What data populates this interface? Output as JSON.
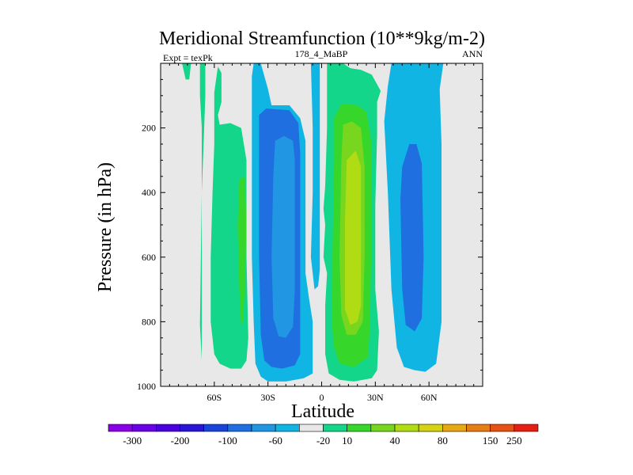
{
  "chart_data": {
    "type": "heatmap",
    "title": "Meridional Streamfunction (10**9kg/m-2)",
    "left_subtitle": "Expt = texPk",
    "center_subtitle": "178_4_MaBP",
    "right_subtitle": "ANN",
    "xlabel": "Latitude",
    "ylabel": "Pressure (in hPa)",
    "xlim": [
      -90,
      90
    ],
    "ylim": [
      1000,
      0
    ],
    "x_ticks": [
      {
        "value": -60,
        "label": "60S"
      },
      {
        "value": -30,
        "label": "30S"
      },
      {
        "value": 0,
        "label": "0"
      },
      {
        "value": 30,
        "label": "30N"
      },
      {
        "value": 60,
        "label": "60N"
      }
    ],
    "y_ticks": [
      {
        "value": 200,
        "label": "200"
      },
      {
        "value": 400,
        "label": "400"
      },
      {
        "value": 600,
        "label": "600"
      },
      {
        "value": 800,
        "label": "800"
      },
      {
        "value": 1000,
        "label": "1000"
      }
    ],
    "background_color": "#e8e8e8",
    "colorbar": {
      "colors": [
        "#8a00e6",
        "#6a00e6",
        "#4b00e0",
        "#2a14d6",
        "#1a44d8",
        "#1f6fe0",
        "#2196e3",
        "#11b5e3",
        "#e8e8e8",
        "#14d68a",
        "#36d62a",
        "#78d61e",
        "#b0dc14",
        "#d6d214",
        "#e6a914",
        "#e67e14",
        "#e65214",
        "#e61f14"
      ],
      "labels": [
        "-300",
        "-200",
        "-100",
        "-60",
        "-20",
        "10",
        "40",
        "80",
        "150",
        "250"
      ],
      "label_boundaries": [
        1,
        3,
        5,
        7,
        9,
        10,
        12,
        14,
        16,
        17
      ]
    },
    "regions": [
      {
        "level": 10,
        "color": "#14d68a",
        "points": [
          [
            -81,
            0
          ],
          [
            -73,
            0
          ],
          [
            -74,
            50
          ],
          [
            -76,
            50
          ],
          [
            -78,
            0
          ]
        ]
      },
      {
        "level": 10,
        "color": "#14d68a",
        "points": [
          [
            -68,
            0
          ],
          [
            -65,
            0
          ],
          [
            -65,
            100
          ],
          [
            -66,
            250
          ],
          [
            -67,
            400
          ],
          [
            -67,
            600
          ],
          [
            -67,
            800
          ],
          [
            -67,
            920
          ],
          [
            -68,
            810
          ],
          [
            -67,
            400
          ],
          [
            -67,
            200
          ],
          [
            -68,
            100
          ]
        ]
      },
      {
        "level": 10,
        "color": "#14d68a",
        "points": [
          [
            -60,
            90
          ],
          [
            -58,
            10
          ],
          [
            -56,
            30
          ],
          [
            -56,
            120
          ],
          [
            -58,
            160
          ],
          [
            -57,
            190
          ],
          [
            -51,
            185
          ],
          [
            -45,
            200
          ],
          [
            -42,
            300
          ],
          [
            -42,
            600
          ],
          [
            -41,
            850
          ],
          [
            -42,
            920
          ],
          [
            -45,
            945
          ],
          [
            -51,
            945
          ],
          [
            -57,
            930
          ],
          [
            -60,
            900
          ],
          [
            -62,
            800
          ],
          [
            -62,
            600
          ],
          [
            -61,
            400
          ],
          [
            -60,
            250
          ]
        ]
      },
      {
        "level": 40,
        "color": "#36d62a",
        "points": [
          [
            -46,
            360
          ],
          [
            -43,
            350
          ],
          [
            -42,
            500
          ],
          [
            -43,
            700
          ],
          [
            -44,
            800
          ],
          [
            -45,
            810
          ],
          [
            -46,
            700
          ],
          [
            -47,
            500
          ]
        ]
      },
      {
        "level": -20,
        "color": "#11b5e3",
        "points": [
          [
            -39,
            400
          ],
          [
            -39,
            150
          ],
          [
            -39,
            40
          ],
          [
            -38,
            0
          ],
          [
            -34,
            0
          ],
          [
            -30,
            80
          ],
          [
            -28,
            130
          ],
          [
            -18,
            130
          ],
          [
            -12,
            170
          ],
          [
            -9,
            240
          ],
          [
            -9,
            450
          ],
          [
            -9,
            650
          ],
          [
            -7,
            730
          ],
          [
            -5,
            800
          ],
          [
            -5,
            960
          ],
          [
            -10,
            975
          ],
          [
            -20,
            985
          ],
          [
            -30,
            985
          ],
          [
            -34,
            970
          ],
          [
            -37,
            930
          ],
          [
            -38,
            800
          ],
          [
            -39,
            600
          ]
        ]
      },
      {
        "level": -20,
        "color": "#11b5e3",
        "points": [
          [
            -6,
            0
          ],
          [
            -1,
            0
          ],
          [
            -1,
            300
          ],
          [
            -1,
            640
          ],
          [
            -2,
            690
          ],
          [
            -4,
            700
          ],
          [
            -6,
            600
          ],
          [
            -5,
            400
          ],
          [
            -5,
            200
          ]
        ]
      },
      {
        "level": -60,
        "color": "#1f6fe0",
        "points": [
          [
            -35,
            260
          ],
          [
            -35,
            160
          ],
          [
            -31,
            140
          ],
          [
            -18,
            145
          ],
          [
            -13,
            185
          ],
          [
            -12,
            280
          ],
          [
            -12,
            560
          ],
          [
            -12,
            900
          ],
          [
            -15,
            935
          ],
          [
            -22,
            945
          ],
          [
            -28,
            940
          ],
          [
            -32,
            920
          ],
          [
            -34,
            840
          ],
          [
            -35,
            600
          ]
        ]
      },
      {
        "level": -100,
        "color": "#2196e3",
        "points": [
          [
            -26,
            240
          ],
          [
            -21,
            225
          ],
          [
            -16,
            240
          ],
          [
            -15,
            300
          ],
          [
            -15,
            700
          ],
          [
            -16,
            815
          ],
          [
            -20,
            850
          ],
          [
            -24,
            845
          ],
          [
            -27,
            790
          ],
          [
            -28,
            600
          ],
          [
            -27,
            350
          ]
        ]
      },
      {
        "level": 10,
        "color": "#14d68a",
        "points": [
          [
            2,
            380
          ],
          [
            3,
            200
          ],
          [
            3,
            80
          ],
          [
            3,
            0
          ],
          [
            12,
            0
          ],
          [
            16,
            15
          ],
          [
            22,
            20
          ],
          [
            28,
            35
          ],
          [
            33,
            85
          ],
          [
            31,
            120
          ],
          [
            31,
            220
          ],
          [
            30,
            440
          ],
          [
            30,
            700
          ],
          [
            32,
            830
          ],
          [
            31,
            950
          ],
          [
            28,
            975
          ],
          [
            18,
            985
          ],
          [
            10,
            980
          ],
          [
            4,
            960
          ],
          [
            2,
            900
          ],
          [
            2,
            750
          ],
          [
            3,
            650
          ],
          [
            1,
            600
          ],
          [
            2,
            500
          ],
          [
            1,
            450
          ]
        ]
      },
      {
        "level": 40,
        "color": "#36d62a",
        "points": [
          [
            6,
            820
          ],
          [
            6,
            600
          ],
          [
            7,
            300
          ],
          [
            7,
            170
          ],
          [
            11,
            125
          ],
          [
            20,
            130
          ],
          [
            25,
            150
          ],
          [
            28,
            250
          ],
          [
            28,
            500
          ],
          [
            27,
            800
          ],
          [
            26,
            910
          ],
          [
            18,
            940
          ],
          [
            10,
            930
          ],
          [
            7,
            880
          ]
        ]
      },
      {
        "level": 80,
        "color": "#78d61e",
        "points": [
          [
            11,
            300
          ],
          [
            12,
            190
          ],
          [
            17,
            180
          ],
          [
            22,
            200
          ],
          [
            24,
            320
          ],
          [
            24,
            600
          ],
          [
            23,
            800
          ],
          [
            19,
            840
          ],
          [
            14,
            840
          ],
          [
            11,
            780
          ],
          [
            10,
            600
          ]
        ]
      },
      {
        "level": 150,
        "color": "#b0dc14",
        "points": [
          [
            14,
            300
          ],
          [
            19,
            270
          ],
          [
            22,
            320
          ],
          [
            22,
            750
          ],
          [
            20,
            800
          ],
          [
            16,
            810
          ],
          [
            13,
            760
          ],
          [
            13,
            500
          ]
        ]
      },
      {
        "level": -20,
        "color": "#11b5e3",
        "points": [
          [
            35,
            180
          ],
          [
            37,
            70
          ],
          [
            39,
            0
          ],
          [
            68,
            0
          ],
          [
            66,
            80
          ],
          [
            67,
            250
          ],
          [
            67,
            800
          ],
          [
            64,
            930
          ],
          [
            58,
            955
          ],
          [
            52,
            950
          ],
          [
            46,
            940
          ],
          [
            42,
            880
          ],
          [
            39,
            700
          ],
          [
            37,
            400
          ]
        ]
      },
      {
        "level": -60,
        "color": "#1f6fe0",
        "points": [
          [
            44,
            420
          ],
          [
            45,
            320
          ],
          [
            49,
            250
          ],
          [
            53,
            250
          ],
          [
            56,
            310
          ],
          [
            57,
            600
          ],
          [
            56,
            790
          ],
          [
            52,
            830
          ],
          [
            47,
            810
          ],
          [
            45,
            700
          ]
        ]
      }
    ]
  }
}
